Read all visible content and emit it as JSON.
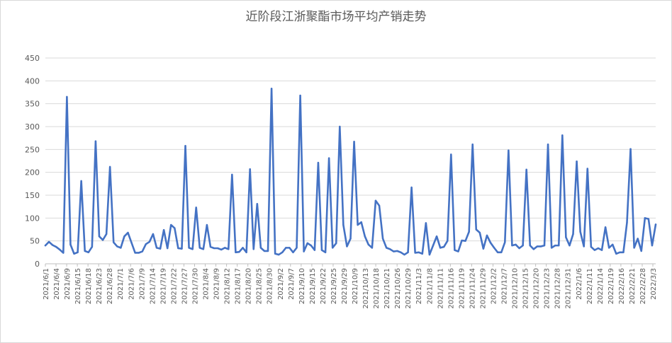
{
  "chart_data": {
    "type": "line",
    "title": "近阶段江浙聚酯市场平均产销走势",
    "xlabel": "",
    "ylabel": "",
    "ylim": [
      0,
      450
    ],
    "yticks": [
      0,
      50,
      100,
      150,
      200,
      250,
      300,
      350,
      400,
      450
    ],
    "grid": "horizontal",
    "legend": "none",
    "line_color": "#4472c4",
    "x_tick_labels": [
      "2021/6/1",
      "2021/6/4",
      "2021/6/9",
      "2021/6/15",
      "2021/6/18",
      "2021/6/23",
      "2021/6/28",
      "2021/7/1",
      "2021/7/6",
      "2021/7/9",
      "2021/7/14",
      "2021/7/19",
      "2021/7/22",
      "2021/7/27",
      "2021/7/30",
      "2021/8/4",
      "2021/8/9",
      "2021/8/12",
      "2021/8/17",
      "2021/8/20",
      "2021/8/25",
      "2021/8/30",
      "2021/9/2",
      "2021/9/7",
      "2021/9/10",
      "2021/9/15",
      "2021/9/22",
      "2021/9/25",
      "2021/9/29",
      "2021/10/9",
      "2021/10/13",
      "2021/10/18",
      "2021/10/21",
      "2021/10/26",
      "2021/10/29",
      "2021/11/3",
      "2021/11/8",
      "2021/11/11",
      "2021/11/16",
      "2021/11/19",
      "2021/11/24",
      "2021/11/29",
      "2021/12/2",
      "2021/12/7",
      "2021/12/10",
      "2021/12/15",
      "2021/12/20",
      "2021/12/23",
      "2021/12/28",
      "2021/12/31",
      "2022/1/6",
      "2022/1/11",
      "2022/1/14",
      "2022/1/19",
      "2022/2/16",
      "2022/2/21",
      "2022/2/28",
      "2022/3/3"
    ],
    "values": [
      40,
      48,
      41,
      37,
      31,
      24,
      365,
      42,
      22,
      25,
      181,
      28,
      25,
      37,
      268,
      60,
      52,
      65,
      212,
      47,
      38,
      35,
      60,
      68,
      46,
      24,
      24,
      27,
      43,
      48,
      65,
      35,
      33,
      74,
      34,
      85,
      78,
      34,
      33,
      258,
      35,
      32,
      123,
      35,
      32,
      85,
      37,
      34,
      34,
      31,
      35,
      32,
      195,
      25,
      26,
      35,
      25,
      207,
      32,
      131,
      35,
      28,
      28,
      383,
      22,
      20,
      25,
      35,
      35,
      25,
      35,
      368,
      27,
      45,
      40,
      30,
      221,
      30,
      25,
      231,
      35,
      45,
      300,
      85,
      38,
      55,
      267,
      85,
      91,
      60,
      42,
      35,
      138,
      127,
      55,
      35,
      32,
      27,
      28,
      25,
      20,
      25,
      167,
      24,
      25,
      22,
      89,
      20,
      40,
      60,
      35,
      37,
      50,
      239,
      30,
      27,
      51,
      50,
      70,
      261,
      75,
      68,
      33,
      62,
      46,
      35,
      25,
      25,
      47,
      248,
      40,
      42,
      34,
      40,
      206,
      40,
      32,
      38,
      38,
      40,
      261,
      35,
      40,
      40,
      281,
      58,
      40,
      65,
      224,
      70,
      38,
      208,
      37,
      30,
      34,
      30,
      80,
      35,
      42,
      22,
      25,
      25,
      90,
      251,
      35,
      55,
      28,
      100,
      98,
      40,
      86
    ]
  }
}
